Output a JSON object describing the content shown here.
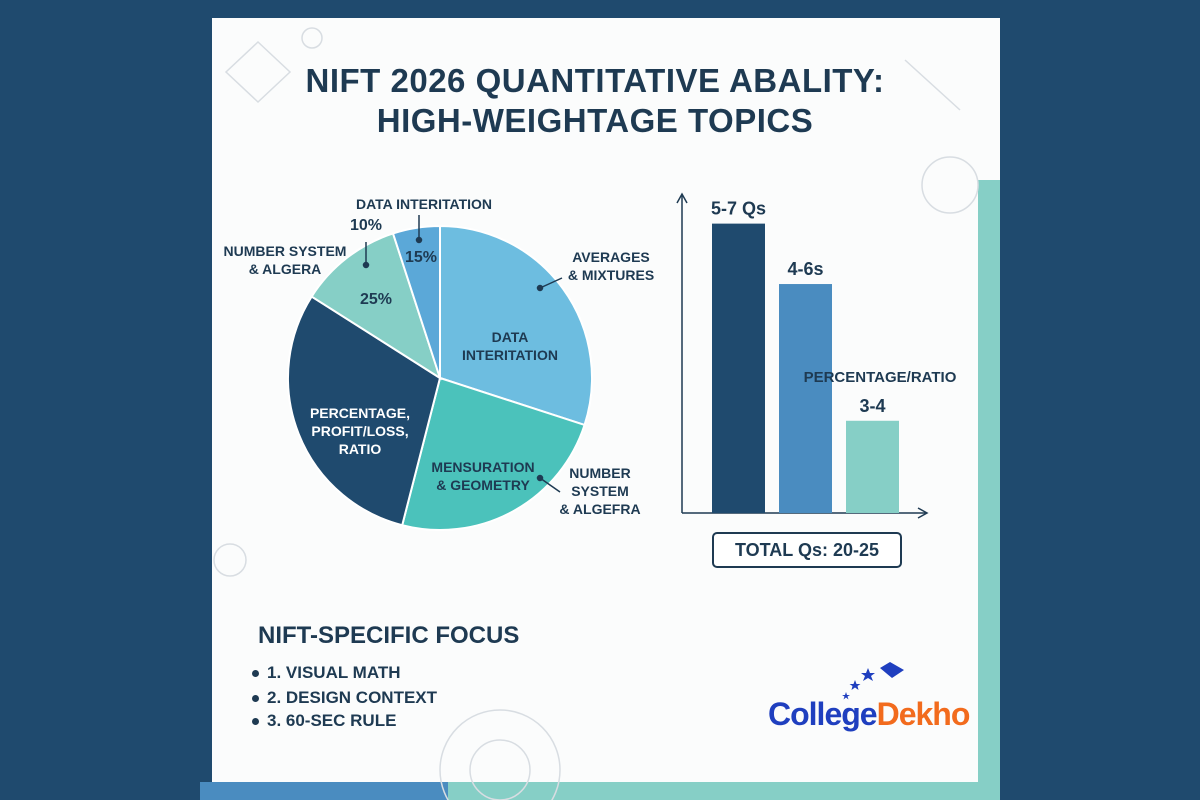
{
  "title_line1": "NIFT 2026 QUANTITATIVE ABALITY:",
  "title_line2": "HIGH-WEIGHTAGE TOPICS",
  "colors": {
    "navy": "#1f4a6e",
    "light_blue": "#6dbde0",
    "teal": "#4bc2bb",
    "mint": "#86cfc6",
    "mid_blue": "#4a8cc0",
    "text": "#1e3a52",
    "logo_blue": "#1f3fbf",
    "logo_orange": "#f26b1d"
  },
  "chart_data": [
    {
      "type": "pie",
      "slices": [
        {
          "label": "DATA INTERITATION",
          "value": 30,
          "color": "#6dbde0"
        },
        {
          "label": "MENSURATION & GEOMETRY",
          "value": 24,
          "color": "#4bc2bb"
        },
        {
          "label": "PERCENTAGE, PROFIT/LOSS, RATIO",
          "value": 30,
          "color": "#1f4a6e"
        },
        {
          "label": "",
          "value": 11,
          "color": "#86cfc6"
        },
        {
          "label": "",
          "value": 5,
          "color": "#5ba8d8"
        }
      ],
      "inner_labels": [
        "25%",
        "15%"
      ],
      "callouts": [
        "DATA INTERITATION",
        "10%",
        "NUMBER SYSTEM & ALGERA",
        "AVERAGES & MIXTURES",
        "NUMBER SYSTEM & ALGEFRA"
      ]
    },
    {
      "type": "bar",
      "categories": [
        "",
        "",
        ""
      ],
      "values": [
        0.91,
        0.72,
        0.29
      ],
      "value_labels": [
        "5-7 Qs",
        "4-6s",
        "3-4"
      ],
      "annotation": "PERCENTAGE/RATIO",
      "colors": [
        "#1f4a6e",
        "#4a8cc0",
        "#86cfc6"
      ],
      "total_label": "TOTAL Qs: 20-25"
    }
  ],
  "focus": {
    "title": "NIFT-SPECIFIC FOCUS",
    "items": [
      "1. VISUAL MATH",
      "2. DESIGN CONTEXT",
      "3. 60-SEC RULE"
    ]
  },
  "logo": {
    "part1": "College",
    "part2": "Dekho"
  }
}
